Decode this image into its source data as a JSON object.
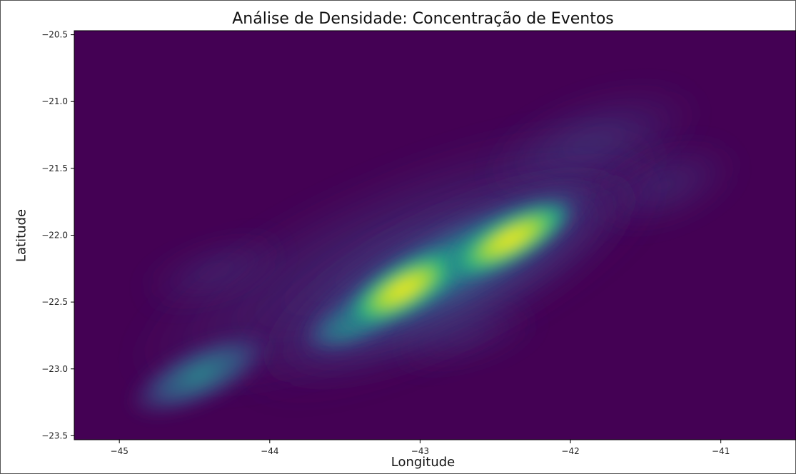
{
  "chart_data": {
    "type": "heatmap",
    "title": "Análise de Densidade: Concentração de Eventos",
    "xlabel": "Longitude",
    "ylabel": "Latitude",
    "xlim": [
      -45.3,
      -40.5
    ],
    "ylim": [
      -23.53,
      -20.47
    ],
    "x_ticks": [
      -45,
      -44,
      -43,
      -42,
      -41
    ],
    "y_ticks": [
      -20.5,
      -21.0,
      -21.5,
      -22.0,
      -22.5,
      -23.0,
      -23.5
    ],
    "x_tick_labels": [
      "−45",
      "−44",
      "−43",
      "−42",
      "−41"
    ],
    "y_tick_labels": [
      "−20.5",
      "−21.0",
      "−21.5",
      "−22.0",
      "−22.5",
      "−23.0",
      "−23.5"
    ],
    "colormap": "viridis",
    "grid": false,
    "density_peaks": [
      {
        "lon": -42.35,
        "lat": -22.02,
        "level": 1.0
      },
      {
        "lon": -42.95,
        "lat": -22.42,
        "level": 1.0
      },
      {
        "lon": -43.35,
        "lat": -22.68,
        "level": 0.45
      },
      {
        "lon": -44.25,
        "lat": -22.95,
        "level": 0.32
      },
      {
        "lon": -41.6,
        "lat": -21.3,
        "level": 0.12
      }
    ]
  }
}
